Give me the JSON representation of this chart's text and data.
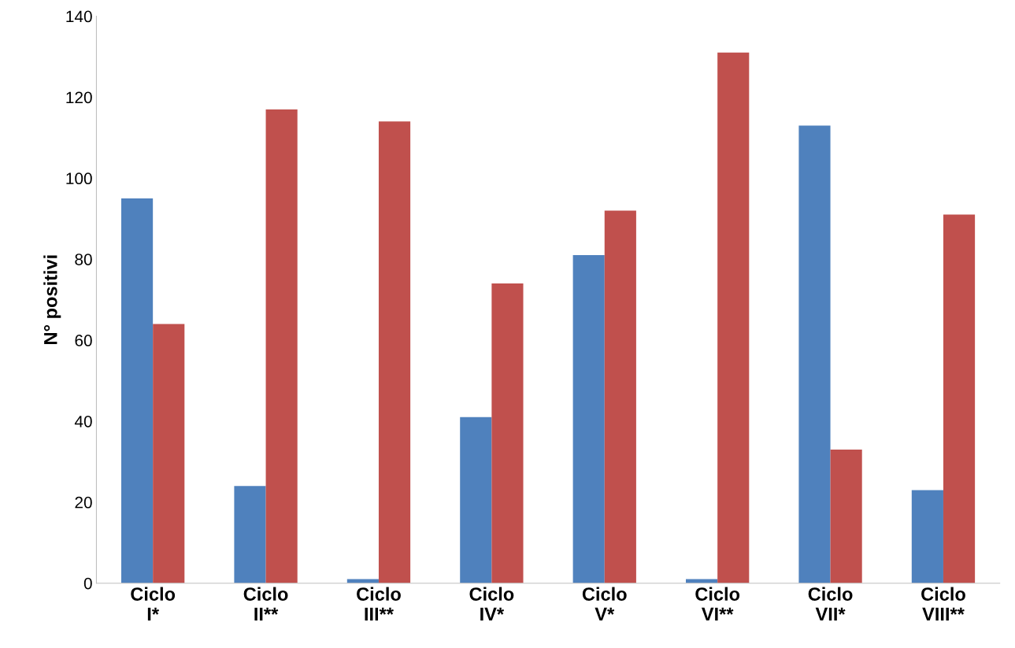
{
  "chart_data": {
    "type": "bar",
    "ylabel": "N° positivi",
    "categories": [
      "Ciclo\nI*",
      "Ciclo\nII**",
      "Ciclo\nIII**",
      "Ciclo\nIV*",
      "Ciclo\nV*",
      "Ciclo\nVI**",
      "Ciclo\nVII*",
      "Ciclo\nVIII**"
    ],
    "series": [
      {
        "color": "#4f81bd",
        "values": [
          95,
          24,
          1,
          41,
          81,
          1,
          113,
          23
        ]
      },
      {
        "color": "#c0504d",
        "values": [
          64,
          117,
          114,
          74,
          92,
          131,
          33,
          91
        ]
      }
    ],
    "ylim": [
      0,
      140
    ],
    "yticks": [
      0,
      20,
      40,
      60,
      80,
      100,
      120,
      140
    ],
    "grid": false,
    "legend": false
  }
}
